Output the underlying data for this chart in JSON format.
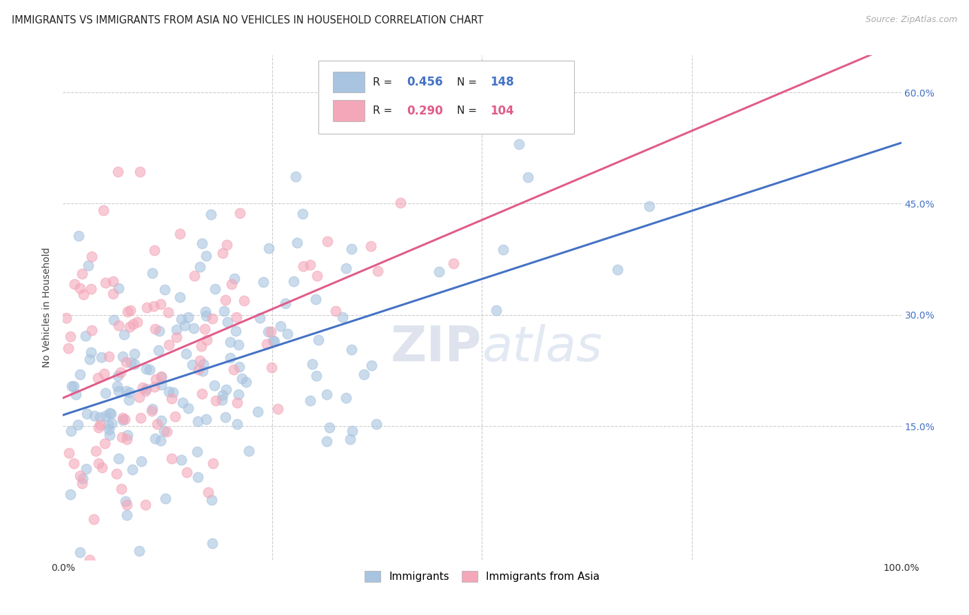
{
  "title": "IMMIGRANTS VS IMMIGRANTS FROM ASIA NO VEHICLES IN HOUSEHOLD CORRELATION CHART",
  "source": "Source: ZipAtlas.com",
  "ylabel_label": "No Vehicles in Household",
  "series1": {
    "label": "Immigrants",
    "color": "#a8c4e0",
    "line_color": "#4472c4",
    "R": 0.456,
    "N": 148,
    "r_color": "#4472c4",
    "n_color": "#e05c00"
  },
  "series2": {
    "label": "Immigrants from Asia",
    "color": "#f4a7b9",
    "line_color": "#e05c8a",
    "R": 0.29,
    "N": 104,
    "r_color": "#e05c8a",
    "n_color": "#e05c00"
  },
  "watermark_text": "ZIPatlas",
  "background_color": "#ffffff",
  "grid_color": "#cccccc",
  "xlim": [
    0,
    1
  ],
  "ylim": [
    -0.03,
    0.65
  ]
}
